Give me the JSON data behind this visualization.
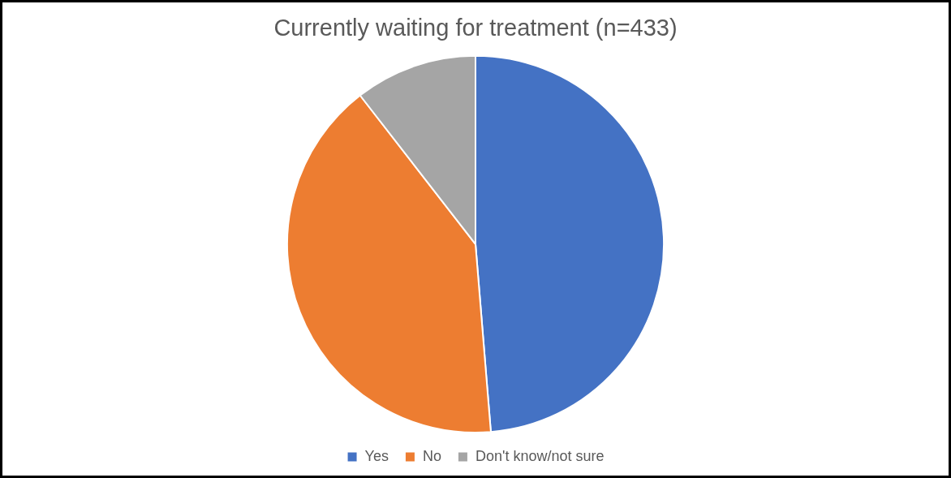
{
  "chart_data": {
    "type": "pie",
    "title": "Currently waiting for treatment (n=433)",
    "categories": [
      "Yes",
      "No",
      "Don't know/not sure"
    ],
    "values": [
      48.7,
      40.8,
      10.5
    ],
    "colors": [
      "#4472c4",
      "#ed7d31",
      "#a5a5a5"
    ],
    "legend": "bottom"
  }
}
